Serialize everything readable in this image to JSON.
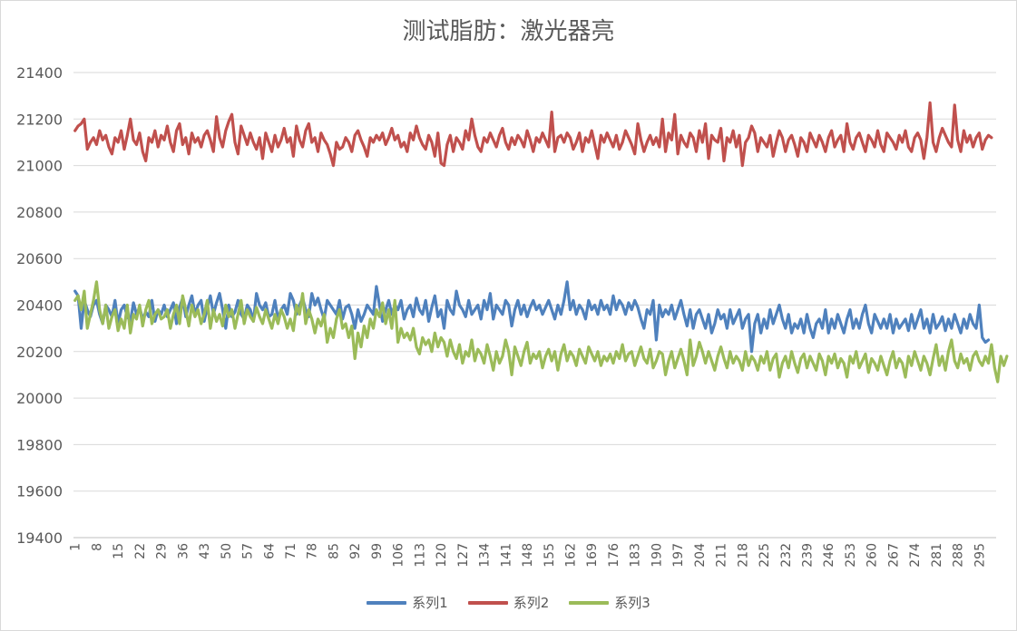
{
  "chart_data": {
    "type": "line",
    "title": "测试脂肪：激光器亮",
    "xlabel": "",
    "ylabel": "",
    "ylim": [
      19400,
      21400
    ],
    "y_ticks": [
      19400,
      19600,
      19800,
      20000,
      20200,
      20400,
      20600,
      20800,
      21000,
      21200,
      21400
    ],
    "x_range": [
      1,
      300
    ],
    "x_tick_labels": [
      "1",
      "8",
      "15",
      "22",
      "29",
      "36",
      "43",
      "50",
      "57",
      "64",
      "71",
      "78",
      "85",
      "92",
      "99",
      "106",
      "113",
      "120",
      "127",
      "134",
      "141",
      "148",
      "155",
      "162",
      "169",
      "176",
      "183",
      "190",
      "197",
      "204",
      "211",
      "218",
      "225",
      "232",
      "239",
      "246",
      "253",
      "260",
      "267",
      "274",
      "281",
      "288",
      "295"
    ],
    "grid": "horizontal",
    "legend_position": "bottom",
    "series": [
      {
        "name": "系列1",
        "color": "#4f81bd",
        "values": [
          20460,
          20440,
          20300,
          20420,
          20380,
          20350,
          20400,
          20420,
          20360,
          20320,
          20400,
          20380,
          20350,
          20420,
          20320,
          20380,
          20400,
          20350,
          20330,
          20410,
          20360,
          20390,
          20340,
          20370,
          20350,
          20420,
          20330,
          20380,
          20360,
          20400,
          20350,
          20380,
          20410,
          20320,
          20390,
          20430,
          20350,
          20400,
          20440,
          20360,
          20400,
          20420,
          20330,
          20390,
          20440,
          20360,
          20410,
          20450,
          20380,
          20300,
          20400,
          20350,
          20370,
          20420,
          20360,
          20340,
          20400,
          20380,
          20330,
          20450,
          20400,
          20380,
          20410,
          20350,
          20360,
          20420,
          20340,
          20380,
          20400,
          20360,
          20450,
          20420,
          20360,
          20400,
          20430,
          20380,
          20350,
          20450,
          20400,
          20430,
          20380,
          20340,
          20420,
          20400,
          20380,
          20360,
          20420,
          20340,
          20390,
          20400,
          20360,
          20300,
          20380,
          20330,
          20360,
          20400,
          20380,
          20360,
          20480,
          20400,
          20330,
          20380,
          20420,
          20360,
          20400,
          20380,
          20420,
          20340,
          20380,
          20400,
          20350,
          20430,
          20380,
          20360,
          20420,
          20330,
          20390,
          20440,
          20350,
          20380,
          20300,
          20420,
          20380,
          20360,
          20460,
          20400,
          20380,
          20350,
          20420,
          20360,
          20380,
          20400,
          20340,
          20420,
          20380,
          20450,
          20340,
          20400,
          20380,
          20360,
          20420,
          20400,
          20310,
          20380,
          20420,
          20360,
          20400,
          20350,
          20390,
          20420,
          20380,
          20400,
          20360,
          20390,
          20420,
          20380,
          20340,
          20400,
          20360,
          20420,
          20500,
          20380,
          20420,
          20360,
          20400,
          20380,
          20340,
          20420,
          20380,
          20400,
          20360,
          20420,
          20380,
          20400,
          20360,
          20440,
          20380,
          20420,
          20400,
          20360,
          20410,
          20380,
          20420,
          20390,
          20340,
          20300,
          20380,
          20360,
          20420,
          20250,
          20400,
          20350,
          20380,
          20360,
          20400,
          20340,
          20380,
          20420,
          20360,
          20310,
          20380,
          20300,
          20360,
          20380,
          20340,
          20300,
          20360,
          20280,
          20320,
          20380,
          20340,
          20360,
          20300,
          20380,
          20320,
          20350,
          20380,
          20300,
          20340,
          20360,
          20200,
          20320,
          20360,
          20280,
          20340,
          20300,
          20380,
          20320,
          20360,
          20400,
          20340,
          20300,
          20360,
          20280,
          20320,
          20300,
          20340,
          20280,
          20360,
          20300,
          20260,
          20320,
          20340,
          20300,
          20380,
          20280,
          20340,
          20300,
          20360,
          20320,
          20280,
          20340,
          20380,
          20300,
          20340,
          20300,
          20360,
          20400,
          20320,
          20280,
          20360,
          20330,
          20300,
          20340,
          20300,
          20360,
          20280,
          20340,
          20300,
          20320,
          20340,
          20290,
          20360,
          20300,
          20340,
          20380,
          20300,
          20340,
          20280,
          20360,
          20300,
          20320,
          20350,
          20290,
          20340,
          20300,
          20360,
          20320,
          20280,
          20340,
          20300,
          20360,
          20320,
          20300,
          20400,
          20260,
          20240,
          20250
        ]
      },
      {
        "name": "系列2",
        "color": "#c0504d",
        "values": [
          21150,
          21170,
          21180,
          21200,
          21070,
          21100,
          21120,
          21090,
          21150,
          21110,
          21130,
          21080,
          21050,
          21120,
          21100,
          21150,
          21070,
          21130,
          21200,
          21110,
          21090,
          21140,
          21060,
          21020,
          21120,
          21100,
          21150,
          21080,
          21130,
          21110,
          21170,
          21100,
          21060,
          21150,
          21180,
          21090,
          21120,
          21050,
          21140,
          21100,
          21120,
          21080,
          21130,
          21150,
          21110,
          21060,
          21210,
          21120,
          21080,
          21150,
          21190,
          21220,
          21100,
          21050,
          21170,
          21130,
          21090,
          21140,
          21100,
          21070,
          21120,
          21030,
          21140,
          21100,
          21060,
          21130,
          21080,
          21110,
          21160,
          21100,
          21120,
          21040,
          21170,
          21110,
          21080,
          21150,
          21180,
          21100,
          21120,
          21060,
          21140,
          21110,
          21090,
          21050,
          21000,
          21100,
          21070,
          21080,
          21120,
          21100,
          21060,
          21130,
          21150,
          21110,
          21080,
          21040,
          21120,
          21100,
          21130,
          21110,
          21140,
          21090,
          21120,
          21160,
          21110,
          21130,
          21080,
          21100,
          21060,
          21140,
          21110,
          21170,
          21120,
          21090,
          21070,
          21130,
          21100,
          21040,
          21140,
          21010,
          21000,
          21090,
          21130,
          21060,
          21120,
          21100,
          21070,
          21150,
          21110,
          21200,
          21130,
          21080,
          21060,
          21120,
          21100,
          21140,
          21110,
          21080,
          21130,
          21160,
          21100,
          21070,
          21120,
          21090,
          21130,
          21110,
          21080,
          21150,
          21110,
          21060,
          21120,
          21100,
          21140,
          21110,
          21080,
          21230,
          21060,
          21120,
          21130,
          21100,
          21140,
          21120,
          21070,
          21100,
          21140,
          21060,
          21120,
          21100,
          21150,
          21090,
          21030,
          21130,
          21100,
          21140,
          21110,
          21080,
          21130,
          21070,
          21100,
          21150,
          21120,
          21090,
          21050,
          21180,
          21110,
          21060,
          21100,
          21130,
          21090,
          21120,
          21080,
          21200,
          21060,
          21140,
          21110,
          21220,
          21050,
          21130,
          21100,
          21080,
          21140,
          21120,
          21060,
          21150,
          21100,
          21180,
          21030,
          21130,
          21110,
          21100,
          21160,
          21020,
          21120,
          21100,
          21150,
          21080,
          21130,
          21000,
          21100,
          21120,
          21170,
          21140,
          21060,
          21120,
          21100,
          21080,
          21130,
          21040,
          21100,
          21150,
          21120,
          21060,
          21110,
          21130,
          21090,
          21040,
          21120,
          21100,
          21060,
          21140,
          21110,
          21080,
          21130,
          21100,
          21060,
          21120,
          21150,
          21080,
          21110,
          21130,
          21060,
          21180,
          21100,
          21070,
          21120,
          21140,
          21100,
          21060,
          21130,
          21110,
          21080,
          21150,
          21090,
          21060,
          21140,
          21120,
          21100,
          21070,
          21130,
          21100,
          21150,
          21080,
          21060,
          21120,
          21140,
          21110,
          21030,
          21120,
          21270,
          21100,
          21060,
          21120,
          21160,
          21130,
          21100,
          21080,
          21260,
          21110,
          21060,
          21150,
          21100,
          21130,
          21080,
          21120,
          21140,
          21070,
          21110,
          21130,
          21120
        ]
      },
      {
        "name": "系列3",
        "color": "#9bbb59",
        "values": [
          20420,
          20440,
          20380,
          20460,
          20300,
          20360,
          20420,
          20500,
          20380,
          20320,
          20400,
          20300,
          20350,
          20380,
          20290,
          20340,
          20300,
          20400,
          20280,
          20360,
          20340,
          20400,
          20310,
          20380,
          20420,
          20320,
          20360,
          20380,
          20340,
          20350,
          20380,
          20300,
          20360,
          20400,
          20320,
          20440,
          20380,
          20310,
          20400,
          20350,
          20380,
          20320,
          20360,
          20420,
          20300,
          20380,
          20330,
          20360,
          20310,
          20400,
          20350,
          20380,
          20300,
          20360,
          20420,
          20320,
          20380,
          20350,
          20330,
          20390,
          20350,
          20320,
          20380,
          20340,
          20300,
          20360,
          20320,
          20380,
          20350,
          20300,
          20340,
          20290,
          20400,
          20360,
          20450,
          20320,
          20380,
          20340,
          20280,
          20340,
          20310,
          20360,
          20240,
          20300,
          20260,
          20340,
          20380,
          20300,
          20320,
          20260,
          20310,
          20170,
          20280,
          20220,
          20310,
          20260,
          20340,
          20300,
          20380,
          20350,
          20410,
          20320,
          20380,
          20300,
          20420,
          20240,
          20300,
          20260,
          20280,
          20250,
          20300,
          20220,
          20190,
          20260,
          20230,
          20250,
          20200,
          20280,
          20220,
          20260,
          20240,
          20180,
          20250,
          20200,
          20170,
          20230,
          20150,
          20200,
          20180,
          20250,
          20160,
          20210,
          20190,
          20150,
          20230,
          20180,
          20120,
          20200,
          20150,
          20180,
          20250,
          20200,
          20100,
          20220,
          20180,
          20140,
          20200,
          20240,
          20150,
          20190,
          20170,
          20200,
          20130,
          20180,
          20210,
          20160,
          20200,
          20120,
          20190,
          20230,
          20160,
          20200,
          20180,
          20140,
          20210,
          20180,
          20150,
          20220,
          20190,
          20160,
          20200,
          20140,
          20180,
          20160,
          20190,
          20150,
          20200,
          20170,
          20230,
          20160,
          20190,
          20200,
          20140,
          20180,
          20220,
          20170,
          20150,
          20210,
          20130,
          20160,
          20200,
          20190,
          20100,
          20160,
          20200,
          20130,
          20170,
          20210,
          20160,
          20100,
          20250,
          20140,
          20180,
          20240,
          20200,
          20150,
          20200,
          20160,
          20120,
          20180,
          20220,
          20170,
          20130,
          20200,
          20150,
          20180,
          20160,
          20120,
          20200,
          20140,
          20180,
          20160,
          20120,
          20180,
          20150,
          20200,
          20120,
          20170,
          20190,
          20090,
          20150,
          20180,
          20130,
          20200,
          20150,
          20110,
          20170,
          20190,
          20130,
          20180,
          20150,
          20120,
          20190,
          20160,
          20100,
          20180,
          20150,
          20190,
          20130,
          20170,
          20150,
          20090,
          20180,
          20150,
          20200,
          20130,
          20160,
          20190,
          20110,
          20170,
          20150,
          20120,
          20180,
          20140,
          20100,
          20160,
          20200,
          20130,
          20170,
          20150,
          20090,
          20180,
          20140,
          20200,
          20160,
          20120,
          20180,
          20150,
          20100,
          20170,
          20230,
          20140,
          20180,
          20120,
          20200,
          20250,
          20160,
          20130,
          20190,
          20150,
          20170,
          20120,
          20180,
          20200,
          20160,
          20140,
          20180,
          20150,
          20230,
          20130,
          20070,
          20180,
          20140,
          20180
        ]
      }
    ]
  }
}
